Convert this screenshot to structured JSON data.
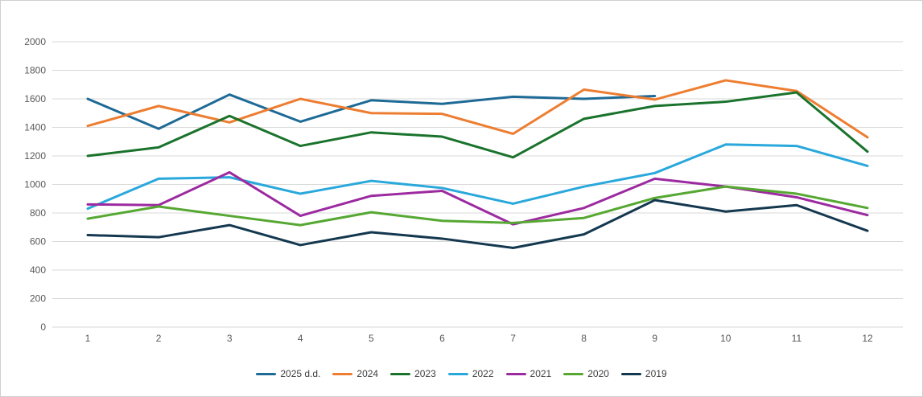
{
  "chart_data": {
    "type": "line",
    "title": "",
    "xlabel": "",
    "ylabel": "",
    "x": [
      1,
      2,
      3,
      4,
      5,
      6,
      7,
      8,
      9,
      10,
      11,
      12
    ],
    "ylim": [
      0,
      2000
    ],
    "ytick_step": 200,
    "grid": "horizontal",
    "legend_position": "bottom",
    "series": [
      {
        "name": "2025 d.d.",
        "color": "#1E6A96",
        "values": [
          1600,
          1390,
          1630,
          1440,
          1590,
          1565,
          1615,
          1600,
          1620,
          null,
          null,
          null
        ]
      },
      {
        "name": "2024",
        "color": "#ED7D31",
        "values": [
          1410,
          1550,
          1435,
          1600,
          1500,
          1495,
          1355,
          1665,
          1595,
          1730,
          1655,
          1330
        ]
      },
      {
        "name": "2023",
        "color": "#1A732C",
        "values": [
          1200,
          1260,
          1480,
          1270,
          1365,
          1335,
          1190,
          1460,
          1550,
          1580,
          1645,
          1230
        ]
      },
      {
        "name": "2022",
        "color": "#29A8DC",
        "values": [
          830,
          1040,
          1050,
          935,
          1025,
          975,
          865,
          985,
          1080,
          1280,
          1270,
          1130
        ]
      },
      {
        "name": "2021",
        "color": "#9C2AA0",
        "values": [
          860,
          855,
          1085,
          780,
          920,
          955,
          720,
          835,
          1040,
          985,
          910,
          785
        ]
      },
      {
        "name": "2020",
        "color": "#56A832",
        "values": [
          760,
          845,
          780,
          715,
          805,
          745,
          730,
          765,
          905,
          985,
          935,
          835
        ]
      },
      {
        "name": "2019",
        "color": "#14384F",
        "values": [
          645,
          630,
          715,
          575,
          665,
          620,
          555,
          650,
          890,
          810,
          855,
          675
        ]
      }
    ]
  },
  "y_axis": {
    "ticks": [
      "0",
      "200",
      "400",
      "600",
      "800",
      "1000",
      "1200",
      "1400",
      "1600",
      "1800",
      "2000"
    ]
  },
  "x_axis": {
    "ticks": [
      "1",
      "2",
      "3",
      "4",
      "5",
      "6",
      "7",
      "8",
      "9",
      "10",
      "11",
      "12"
    ]
  },
  "colors": {
    "background": "#FFFFFF",
    "gridline": "#D9D9D9",
    "axis_label": "#595959",
    "legend_label": "#3F3F3F",
    "frame_border": "#CFCFCF"
  }
}
